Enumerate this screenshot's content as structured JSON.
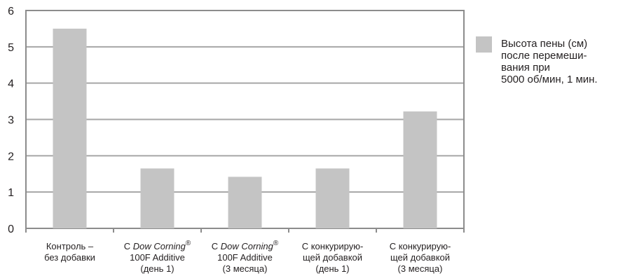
{
  "chart_data": {
    "type": "bar",
    "categories": [
      [
        "Контроль –",
        "без добавки"
      ],
      [
        [
          {
            "t": "C "
          },
          {
            "t": "Dow Corning",
            "i": true
          },
          {
            "t": "®",
            "sup": true
          }
        ],
        "100F Additive",
        "(день 1)"
      ],
      [
        [
          {
            "t": "C "
          },
          {
            "t": "Dow Corning",
            "i": true
          },
          {
            "t": "®",
            "sup": true
          }
        ],
        "100F Additive",
        "(3 месяца)"
      ],
      [
        "С конкурирую-",
        "щей добавкой",
        "(день 1)"
      ],
      [
        "С конкурирую-",
        "щей добавкой",
        "(3 месяца)"
      ]
    ],
    "series": [
      {
        "name": "Высота пены (см) после перемешивания при 5000 об/мин, 1 мин.",
        "values": [
          5.5,
          1.65,
          1.42,
          1.65,
          3.22
        ]
      }
    ],
    "yticks": [
      "0",
      "1",
      "2",
      "3",
      "4",
      "5",
      "6"
    ],
    "ylim": [
      0,
      6
    ],
    "grid": true,
    "legend": {
      "position": "right",
      "lines": [
        "Высота пены (см)",
        "после перемеши-",
        "вания при",
        "5000 об/мин, 1 мин."
      ]
    },
    "colors": {
      "bar": "#c4c4c4",
      "grid": "#a6a6a6",
      "frame": "#8c8c8c",
      "text": "#231f20"
    }
  }
}
